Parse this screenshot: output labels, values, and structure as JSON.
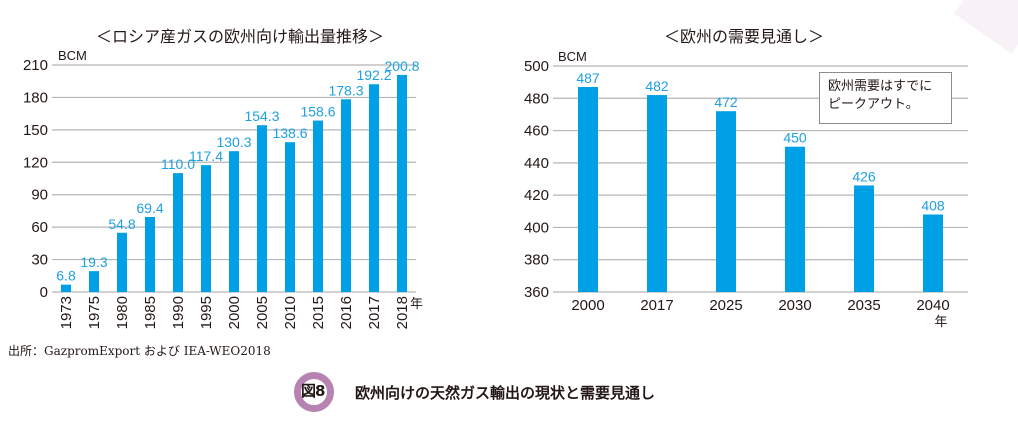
{
  "figure": {
    "badge": "図8",
    "caption": "欧州向けの天然ガス輸出の現状と需要見通し",
    "source": "出所：GazpromExport および IEA-WEO2018",
    "colors": {
      "bar": "#00a0e6",
      "value_label": "#1fa0e2",
      "badge_ring": "#b783b3"
    }
  },
  "chart_data": [
    {
      "type": "bar",
      "title": "＜ロシア産ガスの欧州向け輸出量推移＞",
      "xlabel": "年",
      "ylabel": "BCM",
      "ylim": [
        0,
        210
      ],
      "yticks": [
        0,
        30,
        60,
        90,
        120,
        150,
        180,
        210
      ],
      "grid": true,
      "categories": [
        "1973",
        "1975",
        "1980",
        "1985",
        "1990",
        "1995",
        "2000",
        "2005",
        "2010",
        "2015",
        "2016",
        "2017",
        "2018"
      ],
      "values": [
        6.8,
        19.3,
        54.8,
        69.4,
        110.0,
        117.4,
        130.3,
        154.3,
        138.6,
        158.6,
        178.3,
        192.2,
        200.8
      ],
      "value_labels": [
        "6.8",
        "19.3",
        "54.8",
        "69.4",
        "110.0",
        "117.4",
        "130.3",
        "154.3",
        "138.6",
        "158.6",
        "178.3",
        "192.2",
        "200.8"
      ],
      "x_tick_rotation": "vertical"
    },
    {
      "type": "bar",
      "title": "＜欧州の需要見通し＞",
      "xlabel": "年",
      "ylabel": "BCM",
      "ylim": [
        360,
        500
      ],
      "yticks": [
        360,
        380,
        400,
        420,
        440,
        460,
        480,
        500
      ],
      "grid": true,
      "categories": [
        "2000",
        "2017",
        "2025",
        "2030",
        "2035",
        "2040"
      ],
      "values": [
        487,
        482,
        472,
        450,
        426,
        408
      ],
      "value_labels": [
        "487",
        "482",
        "472",
        "450",
        "426",
        "408"
      ],
      "annotation": [
        "欧州需要はすでに",
        "ピークアウト。"
      ],
      "annotation_placement": "top-right"
    }
  ]
}
